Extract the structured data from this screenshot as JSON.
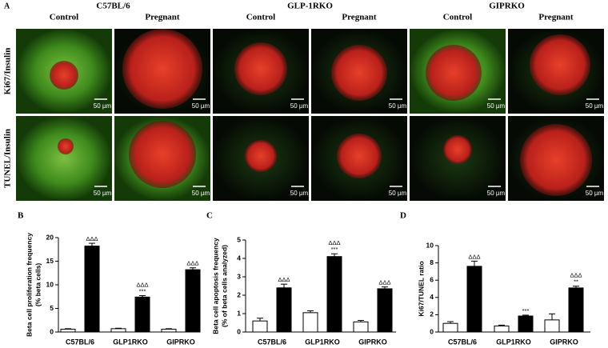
{
  "panel_a": {
    "label": "A",
    "groups": [
      {
        "name": "C57BL/6",
        "columns": [
          "Control",
          "Pregnant"
        ]
      },
      {
        "name": "GLP-1RKO",
        "columns": [
          "Control",
          "Pregnant"
        ]
      },
      {
        "name": "GIPRKO",
        "columns": [
          "Control",
          "Pregnant"
        ]
      }
    ],
    "rows": [
      "Ki67/Insulin",
      "TUNEL/Insulin"
    ],
    "scale_bar": "50 µm"
  },
  "chart_data": [
    {
      "type": "bar",
      "panel": "B",
      "ylabel": [
        "Beta cell proliferation frequency",
        "(% beta cells)"
      ],
      "categories": [
        "C57BL/6",
        "GLP1RKO",
        "GIPRKO"
      ],
      "series": [
        {
          "color": "#ffffff",
          "values": [
            0.6,
            0.7,
            0.6
          ],
          "errors": [
            0.1,
            0.1,
            0.1
          ]
        },
        {
          "color": "#000000",
          "values": [
            18.2,
            7.4,
            13.2
          ],
          "errors": [
            0.6,
            0.3,
            0.4
          ],
          "annotations": [
            [
              "ΔΔΔ"
            ],
            [
              "ΔΔΔ",
              "***"
            ],
            [
              "ΔΔΔ"
            ]
          ]
        }
      ],
      "ylim": [
        0,
        20
      ],
      "yticks": [
        0,
        5,
        10,
        15,
        20
      ]
    },
    {
      "type": "bar",
      "panel": "C",
      "ylabel": [
        "Beta cell apoptosis frequency",
        "(% of beta cells analyzed)"
      ],
      "categories": [
        "C57BL/6",
        "GLP1RKO",
        "GIPRKO"
      ],
      "series": [
        {
          "color": "#ffffff",
          "values": [
            0.6,
            1.05,
            0.55
          ],
          "errors": [
            0.15,
            0.1,
            0.08
          ]
        },
        {
          "color": "#000000",
          "values": [
            2.4,
            4.1,
            2.35
          ],
          "errors": [
            0.2,
            0.15,
            0.1
          ],
          "annotations": [
            [
              "ΔΔΔ"
            ],
            [
              "ΔΔΔ",
              "***"
            ],
            [
              "ΔΔΔ"
            ]
          ]
        }
      ],
      "ylim": [
        0,
        5
      ],
      "yticks": [
        0,
        1,
        2,
        3,
        4,
        5
      ]
    },
    {
      "type": "bar",
      "panel": "D",
      "ylabel": [
        "Ki67/TUNEL ratio"
      ],
      "categories": [
        "C57BL/6",
        "GLP1RKO",
        "GIPRKO"
      ],
      "series": [
        {
          "color": "#ffffff",
          "values": [
            1.0,
            0.7,
            1.4
          ],
          "errors": [
            0.2,
            0.1,
            0.7
          ]
        },
        {
          "color": "#000000",
          "values": [
            7.6,
            1.85,
            5.1
          ],
          "errors": [
            0.6,
            0.1,
            0.2
          ],
          "annotations": [
            [
              "ΔΔΔ"
            ],
            [
              "***"
            ],
            [
              "ΔΔΔ",
              "**"
            ]
          ]
        }
      ],
      "ylim": [
        0,
        10
      ],
      "yticks": [
        0,
        2,
        4,
        6,
        8,
        10
      ]
    }
  ]
}
